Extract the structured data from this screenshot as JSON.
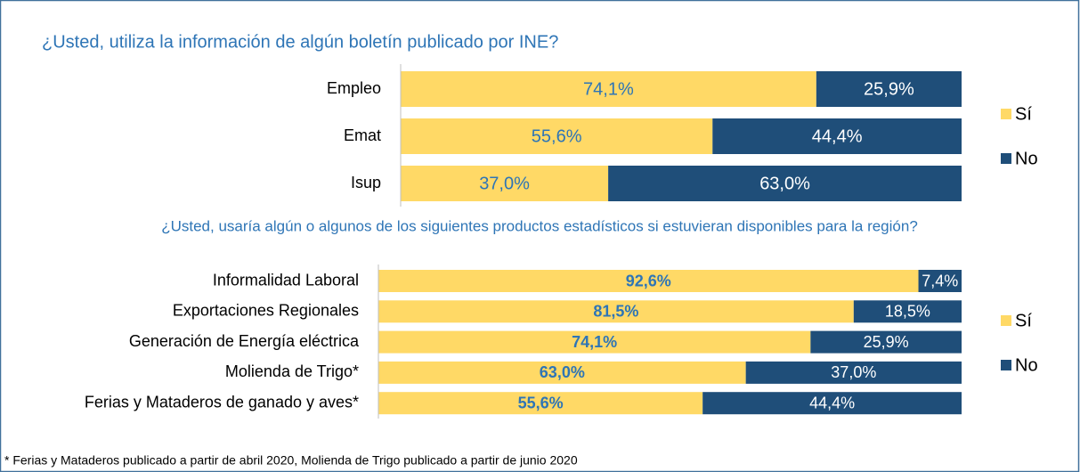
{
  "chart_data": [
    {
      "type": "stacked-bar-horizontal",
      "title": "¿Usted, utiliza la información de algún boletín publicado por INE?",
      "categories": [
        "Empleo",
        "Emat",
        "Isup"
      ],
      "series": [
        {
          "name": "Sí",
          "color": "#FFD966",
          "values": [
            74.1,
            55.6,
            37.0
          ],
          "value_labels": [
            "74,1%",
            "55,6%",
            "37,0%"
          ]
        },
        {
          "name": "No",
          "color": "#1F4E79",
          "values": [
            25.9,
            44.4,
            63.0
          ],
          "value_labels": [
            "25,9%",
            "44,4%",
            "63,0%"
          ]
        }
      ],
      "legend": "right"
    },
    {
      "type": "stacked-bar-horizontal",
      "title": "¿Usted, usaría algún o algunos de los siguientes productos estadísticos si estuvieran disponibles para la región?",
      "categories": [
        "Informalidad Laboral",
        "Exportaciones Regionales",
        "Generación de Energía eléctrica",
        "Molienda de Trigo*",
        "Ferias y Mataderos de ganado y aves*"
      ],
      "series": [
        {
          "name": "Sí",
          "color": "#FFD966",
          "values": [
            92.6,
            81.5,
            74.1,
            63.0,
            55.6
          ],
          "value_labels": [
            "92,6%",
            "81,5%",
            "74,1%",
            "63,0%",
            "55,6%"
          ]
        },
        {
          "name": "No",
          "color": "#1F4E79",
          "values": [
            7.4,
            18.5,
            25.9,
            37.0,
            44.4
          ],
          "value_labels": [
            "7,4%",
            "18,5%",
            "25,9%",
            "37,0%",
            "44,4%"
          ]
        }
      ],
      "legend": "right"
    }
  ],
  "footnote": "* Ferias y Mataderos publicado a partir de abril 2020, Molienda de Trigo publicado a partir de junio 2020"
}
